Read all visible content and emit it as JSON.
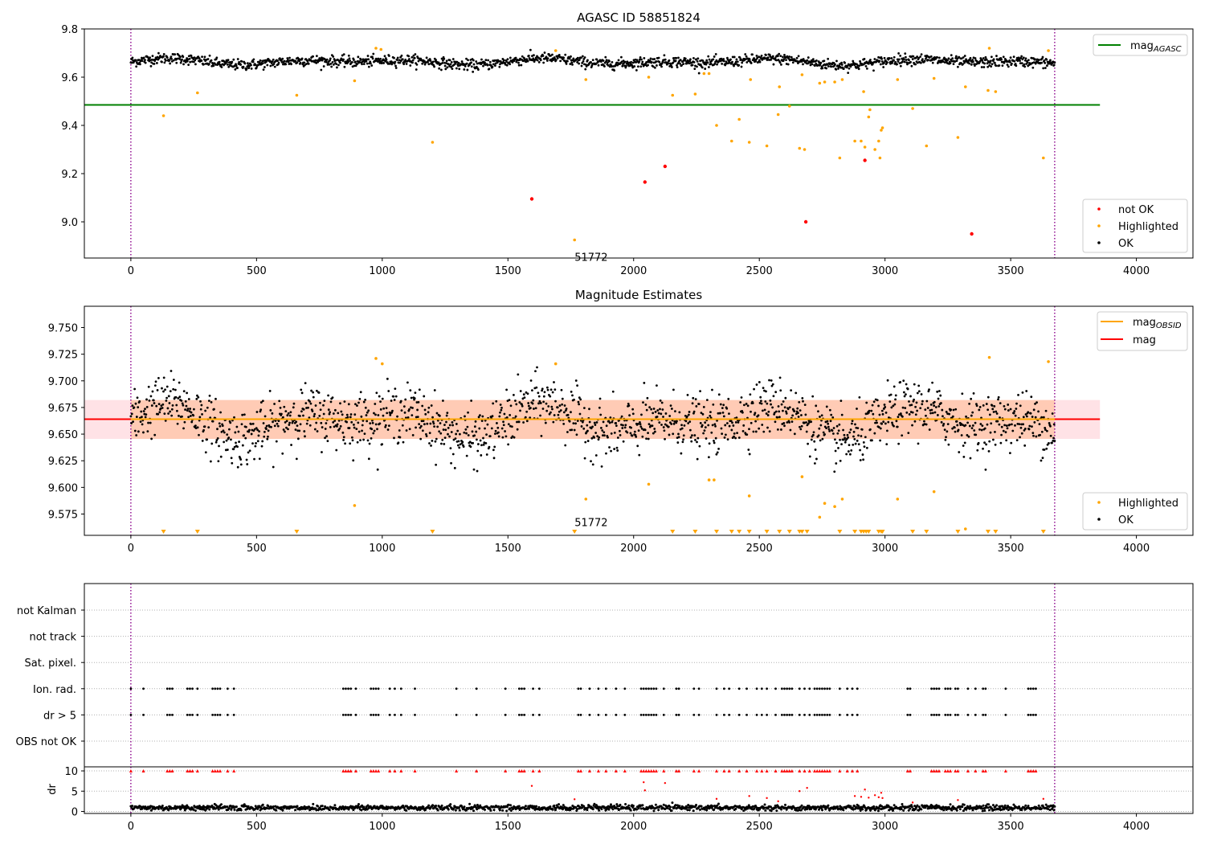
{
  "chart_data": [
    {
      "type": "scatter",
      "title": "AGASC ID 58851824",
      "xlim": [
        -185,
        4225
      ],
      "ylim": [
        8.85,
        9.8
      ],
      "xticks": [
        0,
        500,
        1000,
        1500,
        2000,
        2500,
        3000,
        3500,
        4000
      ],
      "yticks": [
        9.0,
        9.2,
        9.4,
        9.6,
        9.8
      ],
      "ytick_decimals": 1,
      "vlines_x": [
        0,
        3675
      ],
      "vline_color": "#8b008b",
      "hline": {
        "y": 9.485,
        "x0": -185,
        "x1": 3855,
        "color": "#008000",
        "label_base": "mag",
        "label_sub": "AGASC"
      },
      "annotation": {
        "text": "51772",
        "x": 1765,
        "y": 8.895
      },
      "ok_series": {
        "name": "OK",
        "color": "#000000",
        "x_range": [
          0,
          3675
        ],
        "baseline": 9.664,
        "amplitude": 0.015,
        "noise": 0.011,
        "count": 1700
      },
      "highlighted": {
        "name": "Highlighted",
        "color": "#ffa500",
        "points": [
          [
            130,
            9.44
          ],
          [
            265,
            9.535
          ],
          [
            660,
            9.525
          ],
          [
            890,
            9.585
          ],
          [
            975,
            9.72
          ],
          [
            995,
            9.715
          ],
          [
            1200,
            9.33
          ],
          [
            1690,
            9.71
          ],
          [
            1765,
            8.925
          ],
          [
            1810,
            9.59
          ],
          [
            2060,
            9.6
          ],
          [
            2155,
            9.525
          ],
          [
            2245,
            9.53
          ],
          [
            2280,
            9.615
          ],
          [
            2300,
            9.615
          ],
          [
            2330,
            9.4
          ],
          [
            2390,
            9.335
          ],
          [
            2420,
            9.425
          ],
          [
            2460,
            9.33
          ],
          [
            2465,
            9.59
          ],
          [
            2530,
            9.315
          ],
          [
            2575,
            9.445
          ],
          [
            2580,
            9.56
          ],
          [
            2620,
            9.48
          ],
          [
            2660,
            9.305
          ],
          [
            2670,
            9.61
          ],
          [
            2680,
            9.3
          ],
          [
            2740,
            9.575
          ],
          [
            2760,
            9.58
          ],
          [
            2800,
            9.58
          ],
          [
            2820,
            9.265
          ],
          [
            2830,
            9.59
          ],
          [
            2880,
            9.335
          ],
          [
            2905,
            9.335
          ],
          [
            2915,
            9.54
          ],
          [
            2920,
            9.31
          ],
          [
            2935,
            9.435
          ],
          [
            2940,
            9.465
          ],
          [
            2960,
            9.3
          ],
          [
            2975,
            9.335
          ],
          [
            2985,
            9.38
          ],
          [
            2990,
            9.39
          ],
          [
            2980,
            9.265
          ],
          [
            3050,
            9.59
          ],
          [
            3110,
            9.47
          ],
          [
            3165,
            9.315
          ],
          [
            3195,
            9.595
          ],
          [
            3290,
            9.35
          ],
          [
            3320,
            9.56
          ],
          [
            3410,
            9.545
          ],
          [
            3415,
            9.72
          ],
          [
            3440,
            9.54
          ],
          [
            3630,
            9.265
          ],
          [
            3650,
            9.71
          ]
        ]
      },
      "not_ok": {
        "name": "not OK",
        "color": "#ff0000",
        "points": [
          [
            1595,
            9.095
          ],
          [
            2045,
            9.165
          ],
          [
            2125,
            9.23
          ],
          [
            2685,
            9.0
          ],
          [
            2920,
            9.255
          ],
          [
            3345,
            8.95
          ]
        ]
      },
      "legend_top": [
        {
          "name": "mag",
          "sub": "AGASC",
          "color": "#008000"
        }
      ],
      "legend_bottom": [
        {
          "name": "not OK",
          "color": "#ff0000"
        },
        {
          "name": "Highlighted",
          "color": "#ffa500"
        },
        {
          "name": "OK",
          "color": "#000000"
        }
      ]
    },
    {
      "type": "scatter",
      "title": "Magnitude Estimates",
      "xlim": [
        -185,
        4225
      ],
      "ylim": [
        9.555,
        9.77
      ],
      "xticks": [
        0,
        500,
        1000,
        1500,
        2000,
        2500,
        3000,
        3500,
        4000
      ],
      "yticks": [
        9.575,
        9.6,
        9.625,
        9.65,
        9.675,
        9.7,
        9.725,
        9.75
      ],
      "ytick_decimals": 3,
      "vlines_x": [
        0,
        3675
      ],
      "vline_color": "#8b008b",
      "mag_line": {
        "y": 9.664,
        "x0": -185,
        "x1": 3855,
        "color": "#ff0000",
        "band": [
          9.6455,
          9.682
        ],
        "band_color": "#ffb6c1"
      },
      "obsid_line": {
        "y": 9.664,
        "x0": 0,
        "x1": 3675,
        "color": "#ffa500",
        "band": [
          9.6455,
          9.682
        ],
        "band_color": "#ffb07a"
      },
      "annotation": {
        "text": "51772",
        "x": 1765,
        "y": 9.562
      },
      "ok_series": {
        "name": "OK",
        "color": "#000000",
        "x_range": [
          0,
          3675
        ],
        "baseline": 9.662,
        "amplitude": 0.018,
        "noise": 0.013,
        "count": 1700
      },
      "highlighted": {
        "name": "Highlighted",
        "color": "#ffa500",
        "points": [
          [
            975,
            9.721
          ],
          [
            1000,
            9.716
          ],
          [
            1690,
            9.716
          ],
          [
            1810,
            9.589
          ],
          [
            2060,
            9.603
          ],
          [
            2300,
            9.607
          ],
          [
            2320,
            9.607
          ],
          [
            2460,
            9.592
          ],
          [
            2670,
            9.61
          ],
          [
            2740,
            9.572
          ],
          [
            2760,
            9.585
          ],
          [
            2800,
            9.582
          ],
          [
            2830,
            9.589
          ],
          [
            3050,
            9.589
          ],
          [
            3195,
            9.596
          ],
          [
            3320,
            9.561
          ],
          [
            3415,
            9.722
          ],
          [
            3650,
            9.718
          ],
          [
            890,
            9.583
          ]
        ]
      },
      "lower_markers_x": [
        130,
        265,
        660,
        1200,
        1765,
        2155,
        2245,
        2330,
        2390,
        2420,
        2460,
        2530,
        2580,
        2620,
        2660,
        2670,
        2690,
        2820,
        2880,
        2905,
        2915,
        2925,
        2935,
        2975,
        2985,
        2990,
        3110,
        3165,
        3290,
        3410,
        3440,
        3630
      ],
      "lower_marker_y": 9.558,
      "legend_top": [
        {
          "name": "mag",
          "sub": "OBSID",
          "color": "#ffa500"
        },
        {
          "name": "mag",
          "sub": "",
          "color": "#ff0000"
        }
      ],
      "legend_bottom": [
        {
          "name": "Highlighted",
          "color": "#ffa500"
        },
        {
          "name": "OK",
          "color": "#000000"
        }
      ]
    },
    {
      "type": "scatter",
      "title": "",
      "xlim": [
        -185,
        4225
      ],
      "xticks": [
        0,
        500,
        1000,
        1500,
        2000,
        2500,
        3000,
        3500,
        4000
      ],
      "vlines_x": [
        0,
        3675
      ],
      "vline_color": "#8b008b",
      "flag_rows": [
        "not Kalman",
        "not track",
        "Sat. pixel.",
        "Ion. rad.",
        "dr > 5",
        "OBS not OK"
      ],
      "flag_points_x": [
        0,
        50,
        145,
        155,
        165,
        225,
        235,
        245,
        265,
        325,
        335,
        345,
        355,
        385,
        410,
        845,
        855,
        865,
        875,
        895,
        955,
        965,
        975,
        985,
        1030,
        1050,
        1075,
        1130,
        1295,
        1375,
        1490,
        1545,
        1555,
        1565,
        1600,
        1625,
        1780,
        1790,
        1825,
        1860,
        1890,
        1930,
        1965,
        2030,
        2040,
        2050,
        2060,
        2070,
        2080,
        2090,
        2120,
        2170,
        2180,
        2240,
        2260,
        2330,
        2360,
        2380,
        2420,
        2450,
        2490,
        2510,
        2530,
        2565,
        2590,
        2600,
        2610,
        2620,
        2630,
        2660,
        2680,
        2700,
        2720,
        2730,
        2740,
        2750,
        2760,
        2770,
        2780,
        2820,
        2850,
        2870,
        2890,
        3090,
        3100,
        3185,
        3195,
        3205,
        3215,
        3240,
        3250,
        3260,
        3280,
        3290,
        3330,
        3360,
        3390,
        3400,
        3480,
        3570,
        3580,
        3590,
        3600
      ],
      "flag_point_rows": [
        "Ion. rad.",
        "dr > 5"
      ],
      "dr_panel": {
        "ylabel": "dr",
        "ylim": [
          -0.5,
          11
        ],
        "yticks": [
          0,
          5,
          10
        ],
        "dr_x_range": [
          0,
          3675
        ],
        "dr_baseline": 0.9,
        "dr_noise": 0.35,
        "dr_count": 1400,
        "capped_value": 10,
        "outliers": [
          [
            1595,
            6.3
          ],
          [
            1765,
            3.0
          ],
          [
            2040,
            7.2
          ],
          [
            2045,
            5.2
          ],
          [
            2125,
            7.0
          ],
          [
            2330,
            3.1
          ],
          [
            2460,
            3.8
          ],
          [
            2530,
            3.3
          ],
          [
            2575,
            2.5
          ],
          [
            2660,
            5.0
          ],
          [
            2690,
            5.8
          ],
          [
            2880,
            3.8
          ],
          [
            2905,
            3.6
          ],
          [
            2920,
            5.4
          ],
          [
            2935,
            3.4
          ],
          [
            2960,
            4.0
          ],
          [
            2975,
            3.5
          ],
          [
            2985,
            4.6
          ],
          [
            2990,
            3.3
          ],
          [
            3110,
            2.2
          ],
          [
            3290,
            2.8
          ],
          [
            3630,
            3.1
          ]
        ]
      }
    }
  ]
}
